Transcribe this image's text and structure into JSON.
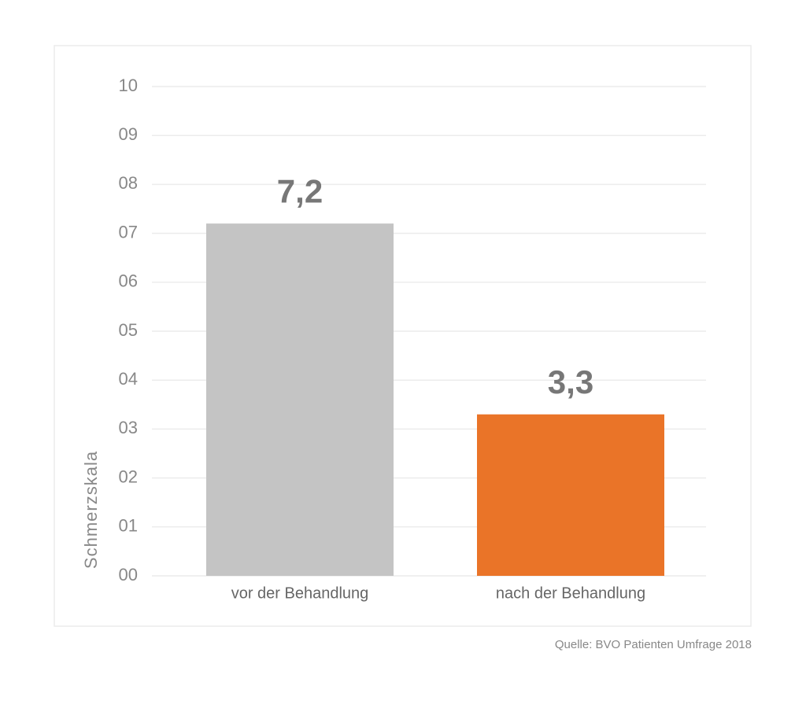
{
  "chart_data": {
    "type": "bar",
    "y_label": "Schmerzskala",
    "source": "Quelle: BVO Patienten Umfrage 2018",
    "categories": [
      "vor der Behandlung",
      "nach der Behandlung"
    ],
    "values": [
      7.2,
      3.3
    ],
    "value_labels": [
      "7,2",
      "3,3"
    ],
    "colors": [
      "#c4c4c4",
      "#ea7428"
    ],
    "ylim": [
      0,
      10
    ],
    "yticks": [
      {
        "value": 0,
        "label": "00"
      },
      {
        "value": 1,
        "label": "01"
      },
      {
        "value": 2,
        "label": "02"
      },
      {
        "value": 3,
        "label": "03"
      },
      {
        "value": 4,
        "label": "04"
      },
      {
        "value": 5,
        "label": "05"
      },
      {
        "value": 6,
        "label": "06"
      },
      {
        "value": 7,
        "label": "07"
      },
      {
        "value": 8,
        "label": "08"
      },
      {
        "value": 9,
        "label": "09"
      },
      10
    ],
    "grid": true
  }
}
